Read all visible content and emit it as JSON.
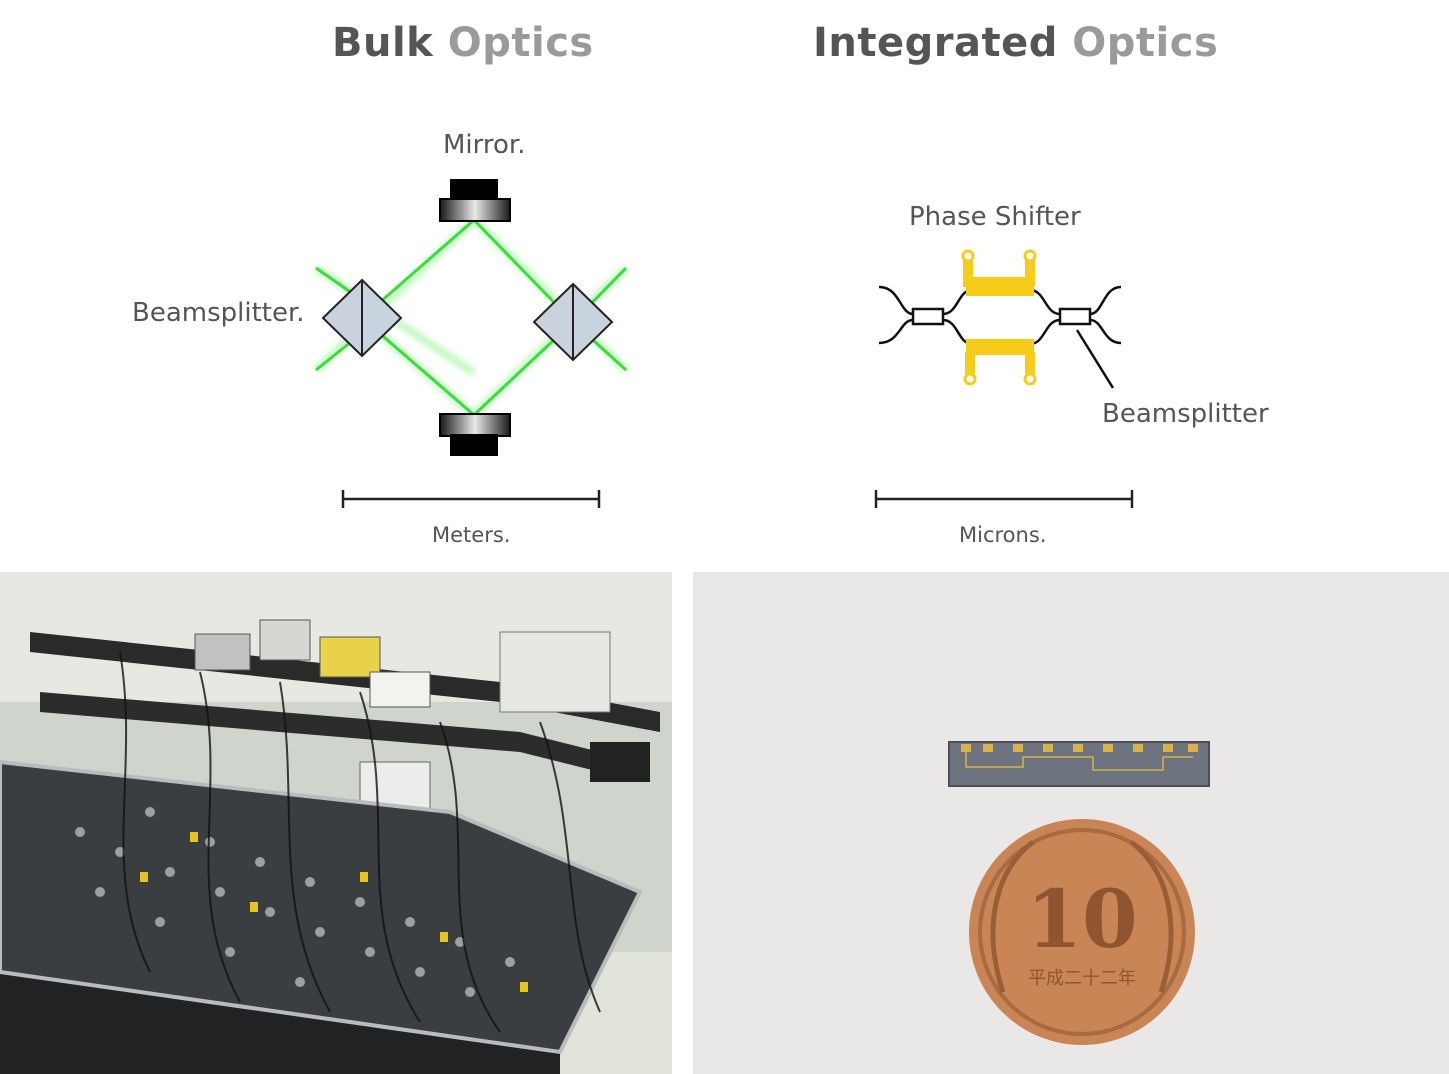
{
  "bulk": {
    "title_word1": "Bulk",
    "title_word2": "Optics",
    "mirror_label": "Mirror.",
    "beamsplitter_label": "Beamsplitter.",
    "scale_label": "Meters."
  },
  "integrated": {
    "title_word1": "Integrated",
    "title_word2": "Optics",
    "phase_shifter_label": "Phase Shifter",
    "beamsplitter_label": "Beamsplitter",
    "scale_label": "Microns."
  },
  "photos": {
    "chip_text": "",
    "coin_value": "10",
    "coin_era_text": "平成二十二年"
  },
  "colors": {
    "laser": "#3cdc3c",
    "gold": "#f5cc1a",
    "copper": "#c98556"
  }
}
